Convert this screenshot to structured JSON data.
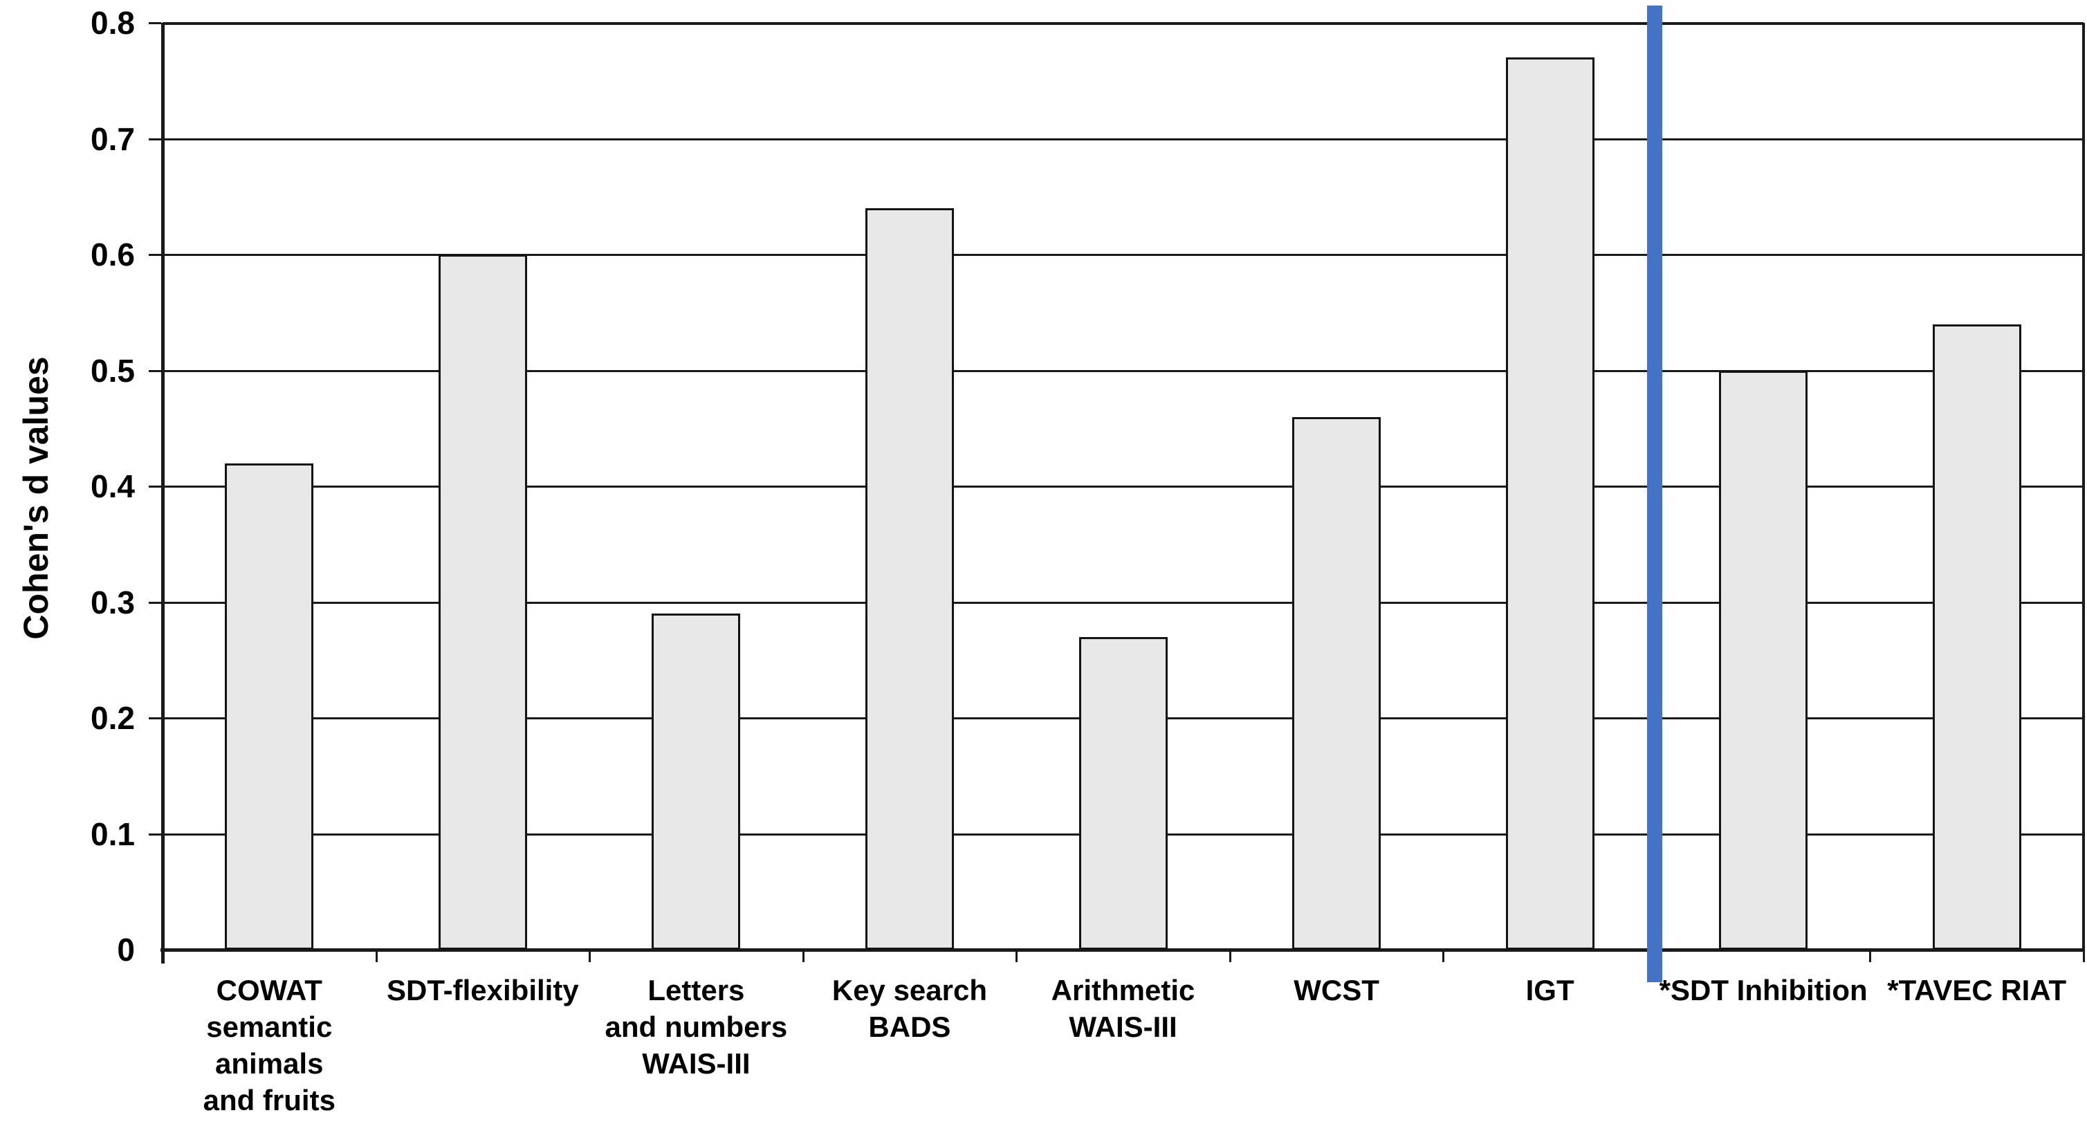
{
  "chart_data": {
    "type": "bar",
    "title": "",
    "ylabel": "Cohen's d values",
    "xlabel": "",
    "ylim": [
      0,
      0.8
    ],
    "ytick_step": 0.1,
    "yticks": [
      "0.8",
      "0.7",
      "0.6",
      "0.5",
      "0.4",
      "0.3",
      "0.2",
      "0.1",
      "0"
    ],
    "grid": true,
    "legend": false,
    "categories": [
      "COWAT\nsemantic\nanimals\nand fruits",
      "SDT-flexibility",
      "Letters\nand numbers\nWAIS-III",
      "Key search\nBADS",
      "Arithmetic\nWAIS-III",
      "WCST",
      "IGT",
      "*SDT Inhibition",
      "*TAVEC RIAT"
    ],
    "values": [
      0.42,
      0.6,
      0.29,
      0.64,
      0.27,
      0.46,
      0.77,
      0.5,
      0.54
    ],
    "separator": {
      "description": "vertical blue divider line between IGT and *SDT Inhibition",
      "after_category_index": 6,
      "color": "#4472c4"
    },
    "colors": {
      "bar_fill": "#e8e8e8",
      "bar_border": "#141414",
      "grid": "#1a1a1a",
      "text": "#000000",
      "background": "#ffffff"
    }
  }
}
